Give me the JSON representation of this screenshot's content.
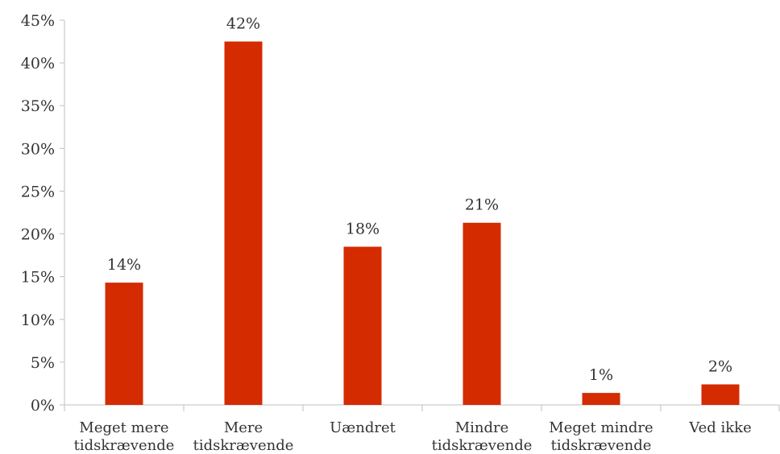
{
  "chart_data": {
    "type": "bar",
    "categories": [
      [
        "Meget mere",
        "tidskrævende"
      ],
      [
        "Mere",
        "tidskrævende"
      ],
      [
        "Uændret"
      ],
      [
        "Mindre",
        "tidskrævende"
      ],
      [
        "Meget mindre",
        "tidskrævende"
      ],
      [
        "Ved ikke"
      ]
    ],
    "values": [
      14.3,
      42.5,
      18.5,
      21.3,
      1.4,
      2.4
    ],
    "data_labels": [
      "14%",
      "42%",
      "18%",
      "21%",
      "1%",
      "2%"
    ],
    "y_ticks": [
      "0%",
      "5%",
      "10%",
      "15%",
      "20%",
      "25%",
      "30%",
      "35%",
      "40%",
      "45%"
    ],
    "ylim": [
      0,
      45
    ],
    "title": "",
    "xlabel": "",
    "ylabel": "",
    "grid": false,
    "legend": "none",
    "bar_color": "#d42b00",
    "axis_color": "#bfbfbf",
    "text_color": "#333333"
  }
}
